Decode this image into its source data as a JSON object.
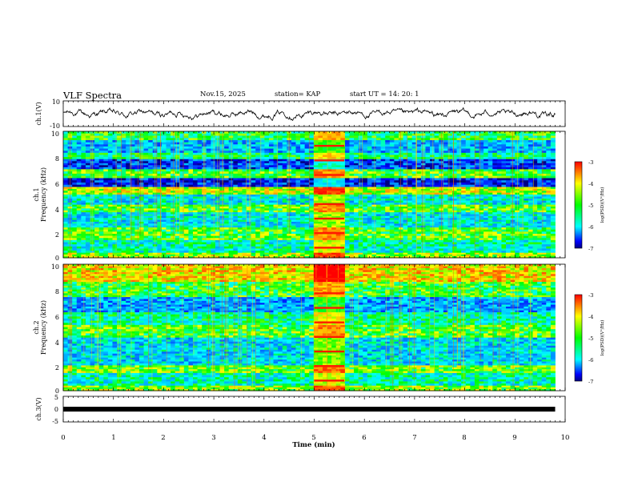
{
  "header": {
    "title": "VLF Spectra",
    "date": "Nov.15, 2025",
    "station": "station= KAP",
    "start": "start  UT  =   14: 20: 1"
  },
  "colorbar": {
    "label": "log(PSD)(V²/Hz)",
    "ticks": [
      "-3",
      "-4",
      "-5",
      "-6",
      "-7"
    ],
    "values": [
      -3,
      -4,
      -5,
      -6,
      -7
    ],
    "colors": [
      "#ff0000",
      "#ffff00",
      "#00ff00",
      "#00ffff",
      "#0000ff",
      "#000080"
    ]
  },
  "chart_data": [
    {
      "type": "line",
      "name": "ch1-waveform",
      "ylabel": "ch.1(V)",
      "ylim": [
        -10,
        10
      ],
      "y_ticks": [
        "10",
        "-10"
      ],
      "xlim": [
        0,
        10
      ],
      "x_end": 9.8,
      "amplitude_range_v": [
        -6,
        6
      ],
      "grid": false
    },
    {
      "type": "heatmap",
      "name": "ch1-spectrogram",
      "ylabel_top": "ch.1",
      "ylabel": "Frequency (kHz)",
      "y_ticks": [
        "0",
        "2",
        "4",
        "6",
        "8",
        "10"
      ],
      "ylim": [
        0,
        10
      ],
      "xlim": [
        0,
        10
      ],
      "x_end": 9.8,
      "zlim": [
        -7,
        -3
      ],
      "burst": [
        5.0,
        5.6
      ],
      "bands": [
        {
          "f0": 9.3,
          "f1": 10.0,
          "level": -4.9
        },
        {
          "f0": 8.3,
          "f1": 9.3,
          "level": -5.8
        },
        {
          "f0": 7.8,
          "f1": 8.3,
          "level": -5.1
        },
        {
          "f0": 7.0,
          "f1": 7.8,
          "level": -6.4
        },
        {
          "f0": 6.3,
          "f1": 7.0,
          "level": -4.7
        },
        {
          "f0": 5.6,
          "f1": 6.3,
          "level": -6.6
        },
        {
          "f0": 5.0,
          "f1": 5.6,
          "level": -4.3
        },
        {
          "f0": 4.2,
          "f1": 5.0,
          "level": -5.5
        },
        {
          "f0": 3.6,
          "f1": 4.2,
          "level": -4.7
        },
        {
          "f0": 2.4,
          "f1": 3.6,
          "level": -5.5
        },
        {
          "f0": 1.4,
          "f1": 2.4,
          "level": -4.7
        },
        {
          "f0": 0.4,
          "f1": 1.4,
          "level": -5.3
        },
        {
          "f0": 0.0,
          "f1": 0.4,
          "level": -4.4
        }
      ]
    },
    {
      "type": "heatmap",
      "name": "ch2-spectrogram",
      "ylabel_top": "ch.2",
      "ylabel": "Frequency (kHz)",
      "y_ticks": [
        "0",
        "2",
        "4",
        "6",
        "8",
        "10"
      ],
      "ylim": [
        0,
        10
      ],
      "xlim": [
        0,
        10
      ],
      "x_end": 9.8,
      "zlim": [
        -7,
        -3
      ],
      "burst": [
        5.0,
        5.6
      ],
      "bands": [
        {
          "f0": 8.6,
          "f1": 10.0,
          "level": -4.0
        },
        {
          "f0": 7.4,
          "f1": 8.6,
          "level": -4.8
        },
        {
          "f0": 6.2,
          "f1": 7.4,
          "level": -5.9
        },
        {
          "f0": 5.2,
          "f1": 6.2,
          "level": -5.2
        },
        {
          "f0": 4.2,
          "f1": 5.2,
          "level": -4.7
        },
        {
          "f0": 3.4,
          "f1": 4.2,
          "level": -5.6
        },
        {
          "f0": 2.0,
          "f1": 3.4,
          "level": -5.6
        },
        {
          "f0": 1.4,
          "f1": 2.0,
          "level": -4.6
        },
        {
          "f0": 0.4,
          "f1": 1.4,
          "level": -5.3
        },
        {
          "f0": 0.0,
          "f1": 0.4,
          "level": -4.5
        }
      ]
    },
    {
      "type": "line",
      "name": "ch3-waveform",
      "ylabel": "ch.3(V)",
      "ylim": [
        -5,
        5
      ],
      "y_ticks": [
        "5",
        "0",
        "-5"
      ],
      "xlim": [
        0,
        10
      ],
      "x_end": 9.8,
      "level_v": 0,
      "grid": false
    }
  ],
  "xaxis": {
    "label": "Time (min)",
    "ticks": [
      "0",
      "1",
      "2",
      "3",
      "4",
      "5",
      "6",
      "7",
      "8",
      "9",
      "10"
    ]
  }
}
